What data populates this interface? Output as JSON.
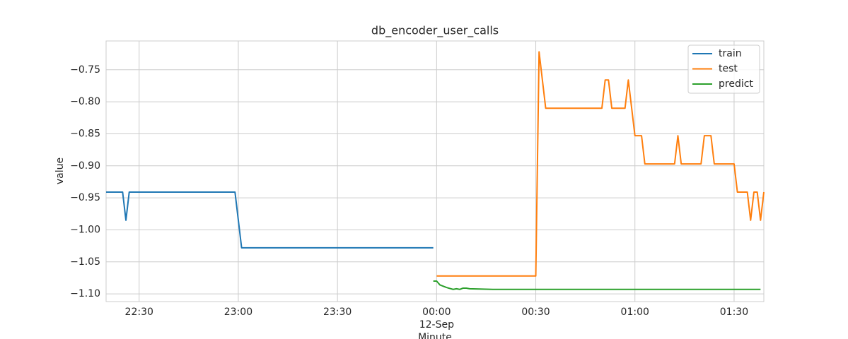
{
  "chart_data": {
    "type": "line",
    "title": "db_encoder_user_calls",
    "xlabel": "Minute",
    "ylabel": "value",
    "xlim": [
      "22:20",
      "01:39"
    ],
    "xticks": [
      "22:30",
      "23:00",
      "23:30",
      {
        "value": "00:00",
        "label": "00:00",
        "date": "12-Sep"
      },
      "00:30",
      "01:00",
      "01:30"
    ],
    "ylim": [
      -1.112,
      -0.705
    ],
    "yticks": [
      {
        "value": -1.1,
        "label": "−1.10"
      },
      {
        "value": -1.05,
        "label": "−1.05"
      },
      {
        "value": -1.0,
        "label": "−1.00"
      },
      {
        "value": -0.95,
        "label": "−0.95"
      },
      {
        "value": -0.9,
        "label": "−0.90"
      },
      {
        "value": -0.85,
        "label": "−0.85"
      },
      {
        "value": -0.8,
        "label": "−0.80"
      },
      {
        "value": -0.75,
        "label": "−0.75"
      }
    ],
    "grid": true,
    "legend": "upper right",
    "series": [
      {
        "name": "train",
        "color": "#1f77b4",
        "x": [
          "22:20",
          "22:25",
          "22:26",
          "22:27",
          "22:59",
          "23:01",
          "23:59"
        ],
        "values": [
          -0.941,
          -0.941,
          -0.985,
          -0.941,
          -0.941,
          -1.028,
          -1.028
        ]
      },
      {
        "name": "test",
        "color": "#ff7f0e",
        "x": [
          "00:00",
          "00:30",
          "00:31",
          "00:33",
          "00:50",
          "00:51",
          "00:52",
          "00:53",
          "00:57",
          "00:58",
          "01:00",
          "01:02",
          "01:03",
          "01:12",
          "01:13",
          "01:14",
          "01:20",
          "01:21",
          "01:23",
          "01:24",
          "01:30",
          "01:31",
          "01:34",
          "01:35",
          "01:36",
          "01:37",
          "01:38",
          "01:39"
        ],
        "values": [
          -1.072,
          -1.072,
          -0.722,
          -0.81,
          -0.81,
          -0.766,
          -0.766,
          -0.81,
          -0.81,
          -0.766,
          -0.853,
          -0.853,
          -0.897,
          -0.897,
          -0.853,
          -0.897,
          -0.897,
          -0.853,
          -0.853,
          -0.897,
          -0.897,
          -0.941,
          -0.941,
          -0.985,
          -0.941,
          -0.941,
          -0.985,
          -0.941
        ]
      },
      {
        "name": "predict",
        "color": "#2ca02c",
        "x": [
          "23:59",
          "00:00",
          "00:01",
          "00:03",
          "00:05",
          "00:06",
          "00:07",
          "00:08",
          "00:09",
          "00:10",
          "00:17",
          "01:38"
        ],
        "values": [
          -1.08,
          -1.08,
          -1.086,
          -1.09,
          -1.093,
          -1.092,
          -1.093,
          -1.091,
          -1.091,
          -1.092,
          -1.093,
          -1.093
        ]
      }
    ]
  }
}
